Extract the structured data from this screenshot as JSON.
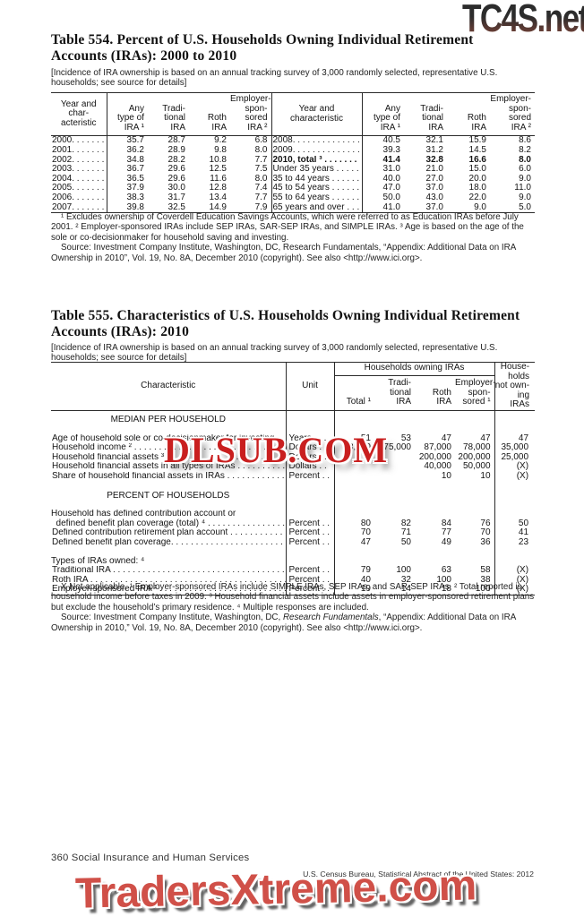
{
  "watermarks": {
    "top": "TC4S.net",
    "middle": "DLSUB.COM",
    "bottom": "TradersXtreme.com"
  },
  "table554": {
    "title": "Table 554. Percent of U.S. Households Owning Individual Retirement\nAccounts (IRAs): 2000 to 2010",
    "note": "[Incidence of IRA ownership is based on  an annual tracking survey of 3,000 randomly selected, representative U.S. households; see source for details]",
    "header": {
      "year_char_left": "Year and char-\nacteristic",
      "year_char_right": "Year and\ncharacteristic",
      "any": "Any\ntype of\nIRA ¹",
      "trad": "Tradi-\ntional\nIRA",
      "roth": "Roth\nIRA",
      "emp": "Employer-\nspon-\nsored\nIRA ²"
    },
    "rows": [
      {
        "l": [
          "2000. . . . . . . . . .",
          "35.7",
          "28.7",
          "9.2",
          "6.8"
        ],
        "r": [
          "2008. . . . . . . . . . . . . . . .",
          "40.5",
          "32.1",
          "15.9",
          "8.6"
        ],
        "rb": false
      },
      {
        "l": [
          "2001. . . . . . . . . .",
          "36.2",
          "28.9",
          "9.8",
          "8.0"
        ],
        "r": [
          "2009. . . . . . . . . . . . . . . .",
          "39.3",
          "31.2",
          "14.5",
          "8.2"
        ],
        "rb": false
      },
      {
        "l": [
          "2002. . . . . . . . . .",
          "34.8",
          "28.2",
          "10.8",
          "7.7"
        ],
        "r": [
          "2010, total ³ . . . . . . .",
          "41.4",
          "32.8",
          "16.6",
          "8.0"
        ],
        "rb": true
      },
      {
        "l": [
          "2003. . . . . . . . . .",
          "36.7",
          "29.6",
          "12.5",
          "7.5"
        ],
        "r": [
          "Under 35 years . . . . . .",
          "31.0",
          "21.0",
          "15.0",
          "6.0"
        ],
        "rb": false
      },
      {
        "l": [
          "2004. . . . . . . . . .",
          "36.5",
          "29.6",
          "11.6",
          "8.0"
        ],
        "r": [
          "35 to 44 years . . . . . .",
          "40.0",
          "27.0",
          "20.0",
          "9.0"
        ],
        "rb": false
      },
      {
        "l": [
          "2005. . . . . . . . . .",
          "37.9",
          "30.0",
          "12.8",
          "7.4"
        ],
        "r": [
          "45 to 54 years . . . . . .",
          "47.0",
          "37.0",
          "18.0",
          "11.0"
        ],
        "rb": false
      },
      {
        "l": [
          "2006. . . . . . . . . .",
          "38.3",
          "31.7",
          "13.4",
          "7.7"
        ],
        "r": [
          "55 to 64 years . . . . . .",
          "50.0",
          "43.0",
          "22.0",
          "9.0"
        ],
        "rb": false
      },
      {
        "l": [
          "2007. . . . . . . . . .",
          "39.8",
          "32.5",
          "14.9",
          "7.9"
        ],
        "r": [
          "65 years and over . . .",
          "41.0",
          "37.0",
          "9.0",
          "5.0"
        ],
        "rb": false
      }
    ],
    "footnotes": "¹ Excludes ownership of Coverdell Education Savings Accounts, which were referred to as Education IRAs before July 2001. ² Employer-sponsored IRAs include SEP IRAs, SAR-SEP IRAs, and SIMPLE IRAs. ³ Age is based on the age of the sole or co-decisionmaker for household saving and investing.",
    "source": "Source: Investment Company Institute, Washington, DC, Research Fundamentals,  “Appendix: Additional Data on IRA Ownership in 2010”, Vol. 19, No. 8A, December 2010 (copyright). See also <http://www.ici.org>."
  },
  "table555": {
    "title": "Table 555. Characteristics of U.S. Households Owning Individual Retirement\nAccounts (IRAs): 2010",
    "note": "[Incidence of IRA ownership is based on  an annual tracking survey of 3,000 randomly selected, representative U.S. households; see source for details]",
    "header": {
      "characteristic": "Characteristic",
      "unit": "Unit",
      "spanner": "Households owning IRAs",
      "total": "Total ¹",
      "trad": "Tradi-\ntional\nIRA",
      "roth": "Roth\nIRA",
      "emp": "Employer-\nspon-\nsored ¹",
      "not_owning": "House-\nholds\nnot own-\ning\nIRAs"
    },
    "rows": [
      {
        "k": "sec",
        "t": "MEDIAN PER HOUSEHOLD"
      },
      {
        "k": "gap"
      },
      {
        "k": "row",
        "label": "Age of household sole or co-decisionmaker for investing . . . . . . . . . .",
        "unit": "Years . . . .",
        "vals": [
          "51",
          "53",
          "47",
          "47",
          "47"
        ],
        "ind": false
      },
      {
        "k": "row",
        "label": "Household income ² . . . . . . . . . . . . . . . . . . . . . . . . . . . . . . . . . . . . . . . .",
        "unit": "Dollars . .",
        "vals": [
          "73,000",
          "75,000",
          "87,000",
          "78,000",
          "35,000"
        ],
        "ind": false
      },
      {
        "k": "row",
        "label": "Household financial assets ³ . . . . . . . . . . . . . . . . . . . . . . . . . . . . . . . . .",
        "unit": "Dollars . .",
        "vals": [
          "",
          "",
          "200,000",
          "200,000",
          "25,000"
        ],
        "ind": false
      },
      {
        "k": "row",
        "label": "Household financial assets in all types of IRAs . . . . . . . . . . . . . . . . . .",
        "unit": "Dollars . .",
        "vals": [
          "",
          "",
          "40,000",
          "50,000",
          "(X)"
        ],
        "ind": false
      },
      {
        "k": "row",
        "label": "Share of household financial assets in IRAs . . . . . . . . . . . . . . . . . . . .",
        "unit": "Percent . .",
        "vals": [
          "",
          "",
          "10",
          "10",
          "(X)"
        ],
        "ind": false
      },
      {
        "k": "gap"
      },
      {
        "k": "sec",
        "t": "PERCENT OF HOUSEHOLDS"
      },
      {
        "k": "gap"
      },
      {
        "k": "row2",
        "label1": "Household has defined contribution account or",
        "label2": "  defined benefit plan coverage (total) ⁴ . . . . . . . . . . . . . . . . . . . . . . . . .",
        "unit": "Percent . .",
        "vals": [
          "80",
          "82",
          "84",
          "76",
          "50"
        ]
      },
      {
        "k": "row",
        "label": "Defined contribution retirement plan account . . . . . . . . . . . . . . . . . . .",
        "unit": "Percent . .",
        "vals": [
          "70",
          "71",
          "77",
          "70",
          "41"
        ],
        "ind": false
      },
      {
        "k": "row",
        "label": "Defined benefit plan coverage. . . . . . . . . . . . . . . . . . . . . . . . . . . . . . . .",
        "unit": "Percent . .",
        "vals": [
          "47",
          "50",
          "49",
          "36",
          "23"
        ],
        "ind": false
      },
      {
        "k": "gap"
      },
      {
        "k": "grp",
        "t": "Types of IRAs owned: ⁴"
      },
      {
        "k": "row",
        "label": "Traditional IRA . . . . . . . . . . . . . . . . . . . . . . . . . . . . . . . . . . . . . . . . . . . .",
        "unit": "Percent . .",
        "vals": [
          "79",
          "100",
          "63",
          "58",
          "(X)"
        ],
        "ind": true
      },
      {
        "k": "row",
        "label": "Roth IRA . . . . . . . . . . . . . . . . . . . . . . . . . . . . . . . . . . . . . . . . . . . . . . . .",
        "unit": "Percent . .",
        "vals": [
          "40",
          "32",
          "100",
          "38",
          "(X)"
        ],
        "ind": true
      },
      {
        "k": "row",
        "label": "Employer-sponsored IRA ¹  . . . . . . . . . . . . . . . . . . . . . . . . . . . . . . . . .",
        "unit": "Percent . .",
        "vals": [
          "19",
          "14",
          "18",
          "100",
          "(X)"
        ],
        "ind": true
      }
    ],
    "footnotes": "X Not applicable. ¹ Employer-sponsored IRAs include SIMPLE IRAs, SEP IRAs, and SAR-SEP IRAs. ² Total reported is household income before taxes in 2009. ³ Household financial assets include assets in employer-sponsored retirement plans but exclude the household’s primary residence. ⁴ Multiple responses are included.",
    "source_parts": {
      "pre": "Source: Investment Company Institute, Washington, DC, ",
      "italic": "Research Fundamentals",
      "post": ", “Appendix: Additional Data on IRA Ownership in 2010,” Vol. 19, No. 8A, December 2010 (copyright). See also <http://www.ici.org>."
    }
  },
  "footer": {
    "page_label": "360  Social Insurance and Human Services",
    "credit": "U.S. Census Bureau, Statistical Abstract of the United States: 2012"
  }
}
